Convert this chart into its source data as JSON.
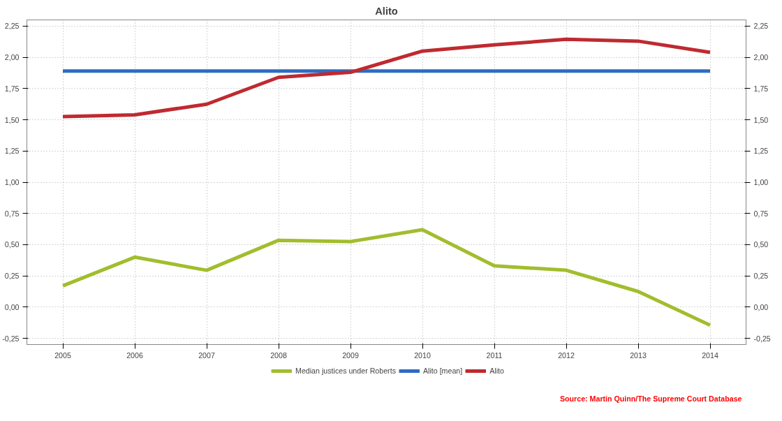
{
  "chart_data": {
    "type": "line",
    "title": "Alito",
    "x": [
      2005,
      2006,
      2007,
      2008,
      2009,
      2010,
      2011,
      2012,
      2013,
      2014
    ],
    "xlim": [
      2004.5,
      2014.5
    ],
    "xticks": [
      2005,
      2006,
      2007,
      2008,
      2009,
      2010,
      2011,
      2012,
      2013,
      2014
    ],
    "ylim": [
      -0.3,
      2.3
    ],
    "yticks": [
      {
        "value": -0.25,
        "label": "-0,25"
      },
      {
        "value": 0,
        "label": "0,00"
      },
      {
        "value": 0.25,
        "label": "0,25"
      },
      {
        "value": 0.5,
        "label": "0,50"
      },
      {
        "value": 0.75,
        "label": "0,75"
      },
      {
        "value": 1,
        "label": "1,00"
      },
      {
        "value": 1.25,
        "label": "1,25"
      },
      {
        "value": 1.5,
        "label": "1,50"
      },
      {
        "value": 1.75,
        "label": "1,75"
      },
      {
        "value": 2,
        "label": "2,00"
      },
      {
        "value": 2.25,
        "label": "2,25"
      }
    ],
    "y2lim": [
      -0.3,
      2.3
    ],
    "y2ticks": [
      {
        "value": -0.25,
        "label": "-0,25"
      },
      {
        "value": 0,
        "label": "0,00"
      },
      {
        "value": 0.25,
        "label": "0,25"
      },
      {
        "value": 0.5,
        "label": "0,50"
      },
      {
        "value": 0.75,
        "label": "0,75"
      },
      {
        "value": 1,
        "label": "1,00"
      },
      {
        "value": 1.25,
        "label": "1,25"
      },
      {
        "value": 1.5,
        "label": "1,50"
      },
      {
        "value": 1.75,
        "label": "1,75"
      },
      {
        "value": 2,
        "label": "2,00"
      },
      {
        "value": 2.25,
        "label": "2,25"
      }
    ],
    "series": [
      {
        "name": "Median justices under Roberts",
        "color": "#a2bd2d",
        "values": [
          0.17,
          0.4,
          0.295,
          0.535,
          0.525,
          0.62,
          0.33,
          0.295,
          0.125,
          -0.145
        ]
      },
      {
        "name": "Alito [mean]",
        "color": "#2f6cc2",
        "values": [
          1.89,
          1.89,
          1.89,
          1.89,
          1.89,
          1.89,
          1.89,
          1.89,
          1.89,
          1.89
        ]
      },
      {
        "name": "Alito",
        "color": "#bf2a30",
        "values": [
          1.525,
          1.54,
          1.625,
          1.84,
          1.88,
          2.05,
          2.1,
          2.145,
          2.13,
          2.04
        ]
      }
    ],
    "grid": true,
    "legend": "bottom",
    "marker": "none",
    "line_style": "solid",
    "annotations": [
      "Source: Martin Quinn/The Supreme Court Database"
    ]
  }
}
